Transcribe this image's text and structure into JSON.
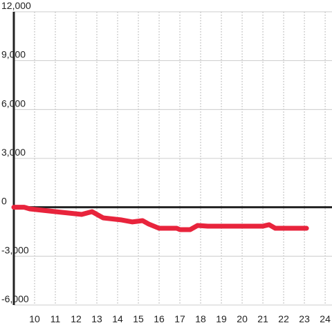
{
  "chart_data": {
    "type": "line",
    "xlim": [
      9,
      24.33
    ],
    "xticks": [
      10,
      11,
      12,
      13,
      14,
      15,
      16,
      17,
      18,
      19,
      20,
      21,
      22,
      23,
      24
    ],
    "ylim": [
      -6000,
      12000
    ],
    "yticks": [
      {
        "value": 12000,
        "label": "12,000"
      },
      {
        "value": 9000,
        "label": "9,000"
      },
      {
        "value": 6000,
        "label": "6,000"
      },
      {
        "value": 3000,
        "label": "3,000"
      },
      0,
      {
        "value": -3000,
        "label": "-3,000"
      },
      {
        "value": -6000,
        "label": "-6,000"
      }
    ],
    "grid": true,
    "series": [
      {
        "color": "#e8243c",
        "x": [
          9.0,
          9.5,
          9.77,
          11.0,
          11.6,
          12.27,
          12.77,
          13.3,
          14.2,
          14.7,
          15.2,
          15.5,
          16.0,
          16.85,
          17.0,
          17.5,
          17.85,
          18.35,
          21.0,
          21.3,
          21.6,
          23.1
        ],
        "values": [
          0,
          0,
          -100,
          -270,
          -350,
          -440,
          -270,
          -650,
          -780,
          -900,
          -820,
          -1030,
          -1290,
          -1290,
          -1370,
          -1370,
          -1120,
          -1160,
          -1160,
          -1070,
          -1290,
          -1290
        ]
      }
    ]
  }
}
